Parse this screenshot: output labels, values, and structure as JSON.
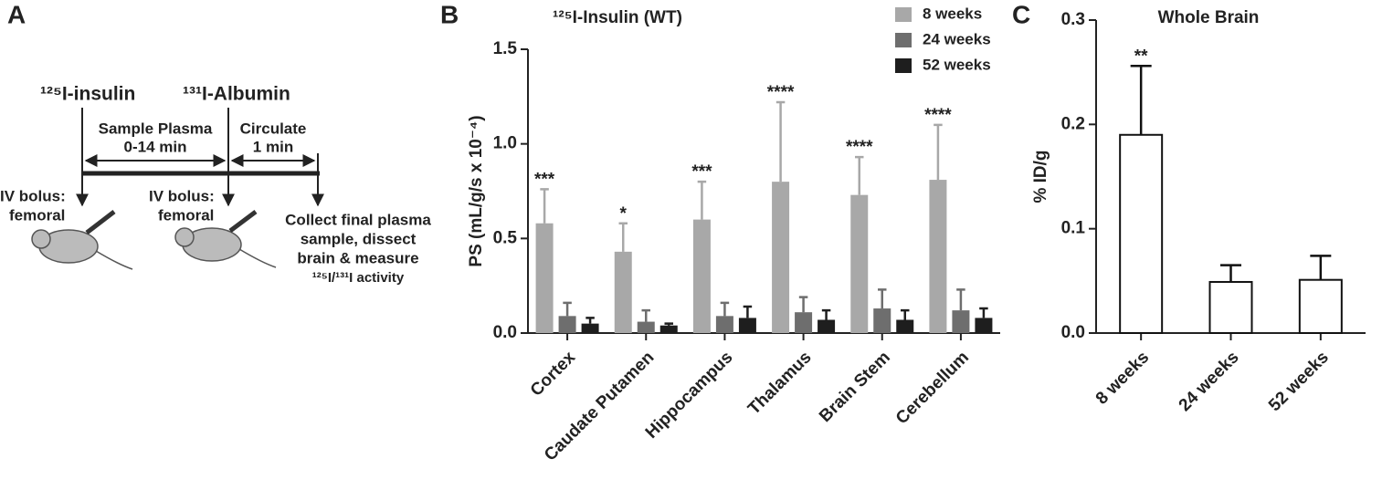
{
  "panel_labels": [
    "A",
    "B",
    "C"
  ],
  "diagram": {
    "tracer_1": "¹²⁵I-insulin",
    "tracer_2": "¹³¹I-Albumin",
    "phase_1": [
      "Sample Plasma",
      "0-14 min"
    ],
    "phase_2": [
      "Circulate",
      "1 min"
    ],
    "step_1": [
      "IV bolus:",
      "femoral"
    ],
    "step_2": [
      "IV bolus:",
      "femoral"
    ],
    "step_3": [
      "Collect final plasma",
      "sample, dissect",
      "brain & measure",
      "¹²⁵I/¹³¹I activity"
    ]
  },
  "chart_data": [
    {
      "type": "bar",
      "title": "¹²⁵I-Insulin (WT)",
      "ylabel": "PS (mL/g/s x 10⁻⁴)",
      "categories": [
        "Cortex",
        "Caudate Putamen",
        "Hippocampus",
        "Thalamus",
        "Brain Stem",
        "Cerebellum"
      ],
      "series": [
        {
          "name": "8 weeks",
          "color": "#a8a8a8",
          "values": [
            0.58,
            0.43,
            0.6,
            0.8,
            0.73,
            0.81
          ],
          "errors": [
            0.18,
            0.15,
            0.2,
            0.42,
            0.2,
            0.29
          ],
          "significance": [
            "***",
            "*",
            "***",
            "****",
            "****",
            "****"
          ]
        },
        {
          "name": "24 weeks",
          "color": "#6e6e6e",
          "values": [
            0.09,
            0.06,
            0.09,
            0.11,
            0.13,
            0.12
          ],
          "errors": [
            0.07,
            0.06,
            0.07,
            0.08,
            0.1,
            0.11
          ]
        },
        {
          "name": "52 weeks",
          "color": "#1e1e1e",
          "values": [
            0.05,
            0.04,
            0.08,
            0.07,
            0.07,
            0.08
          ],
          "errors": [
            0.03,
            0.01,
            0.06,
            0.05,
            0.05,
            0.05
          ]
        }
      ],
      "ylim": [
        0,
        1.5
      ],
      "yticks": [
        {
          "value": 0,
          "label": "0.0"
        },
        0.5,
        {
          "value": 1,
          "label": "1.0"
        },
        1.5
      ],
      "legend": "upper right"
    },
    {
      "type": "bar",
      "title": "Whole Brain",
      "ylabel": "% ID/g",
      "categories": [
        "8 weeks",
        "24 weeks",
        "52 weeks"
      ],
      "series": [
        {
          "color": "#ffffff",
          "edgecolor": "#111111",
          "values": [
            0.19,
            0.049,
            0.051
          ],
          "errors": [
            0.066,
            0.016,
            0.023
          ],
          "significance": [
            "**",
            null,
            null
          ]
        }
      ],
      "ylim": [
        0,
        0.3
      ],
      "yticks": [
        {
          "value": 0,
          "label": "0.0"
        },
        0.1,
        0.2,
        0.3
      ]
    }
  ]
}
